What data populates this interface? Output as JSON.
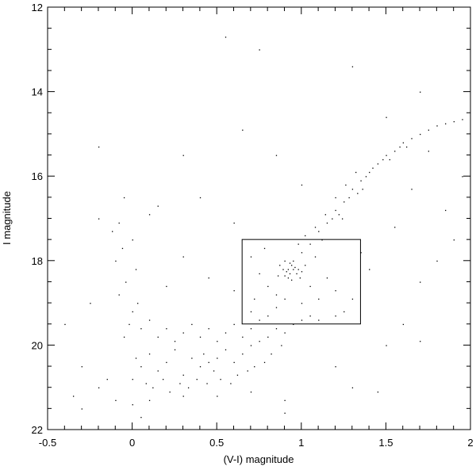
{
  "chart_data": {
    "type": "scatter",
    "title": "",
    "xlabel": "(V-I) magnitude",
    "ylabel": "I magnitude",
    "xlim": [
      -0.5,
      2
    ],
    "ylim": [
      22,
      12
    ],
    "y_inverted": true,
    "grid": false,
    "x_ticks": [
      "-0.5",
      "0",
      "0.5",
      "1",
      "1.5",
      "2"
    ],
    "x_tick_values": [
      -0.5,
      0,
      0.5,
      1,
      1.5,
      2
    ],
    "y_ticks": [
      "12",
      "14",
      "16",
      "18",
      "20",
      "22"
    ],
    "y_tick_values": [
      12,
      14,
      16,
      18,
      20,
      22
    ],
    "marker_color": "#000000",
    "annotation_box": {
      "x": [
        0.65,
        1.35
      ],
      "y": [
        17.5,
        19.5
      ]
    },
    "points_note_sample": true,
    "points": [
      [
        0.02,
        20.3
      ],
      [
        0.05,
        20.5
      ],
      [
        0.1,
        20.2
      ],
      [
        0.15,
        20.6
      ],
      [
        0.2,
        20.4
      ],
      [
        0.25,
        20.1
      ],
      [
        0.3,
        20.7
      ],
      [
        0.35,
        20.3
      ],
      [
        0.4,
        20.5
      ],
      [
        0.42,
        20.2
      ],
      [
        0.45,
        20.4
      ],
      [
        0.48,
        20.6
      ],
      [
        0.5,
        20.3
      ],
      [
        0.55,
        20.1
      ],
      [
        0.6,
        20.4
      ],
      [
        0.65,
        20.2
      ],
      [
        0.7,
        20.0
      ],
      [
        0.75,
        19.9
      ],
      [
        0.8,
        19.8
      ],
      [
        0.85,
        19.6
      ],
      [
        0.0,
        20.8
      ],
      [
        0.08,
        20.9
      ],
      [
        0.12,
        21.0
      ],
      [
        0.18,
        20.8
      ],
      [
        0.22,
        21.1
      ],
      [
        0.28,
        20.9
      ],
      [
        0.33,
        21.0
      ],
      [
        0.38,
        20.8
      ],
      [
        0.44,
        20.9
      ],
      [
        0.52,
        20.8
      ],
      [
        0.58,
        20.9
      ],
      [
        0.62,
        20.7
      ],
      [
        0.68,
        20.6
      ],
      [
        0.72,
        20.5
      ],
      [
        0.78,
        20.4
      ],
      [
        0.82,
        20.2
      ],
      [
        0.88,
        20.0
      ],
      [
        0.9,
        19.7
      ],
      [
        0.95,
        19.5
      ],
      [
        1.0,
        19.4
      ],
      [
        -0.05,
        19.8
      ],
      [
        -0.02,
        19.5
      ],
      [
        0.0,
        19.2
      ],
      [
        0.03,
        19.0
      ],
      [
        -0.08,
        18.8
      ],
      [
        -0.04,
        18.5
      ],
      [
        0.02,
        18.2
      ],
      [
        -0.1,
        18.0
      ],
      [
        -0.06,
        17.7
      ],
      [
        0.0,
        17.5
      ],
      [
        -0.12,
        17.3
      ],
      [
        -0.08,
        17.1
      ],
      [
        0.05,
        19.6
      ],
      [
        0.1,
        19.4
      ],
      [
        0.15,
        19.8
      ],
      [
        0.2,
        19.6
      ],
      [
        0.25,
        19.9
      ],
      [
        0.3,
        19.7
      ],
      [
        0.35,
        19.5
      ],
      [
        0.4,
        19.8
      ],
      [
        0.45,
        19.6
      ],
      [
        0.5,
        19.9
      ],
      [
        0.55,
        19.7
      ],
      [
        0.6,
        19.5
      ],
      [
        0.65,
        19.8
      ],
      [
        0.7,
        19.6
      ],
      [
        0.75,
        19.4
      ],
      [
        0.8,
        19.3
      ],
      [
        0.85,
        19.1
      ],
      [
        0.9,
        18.9
      ],
      [
        0.92,
        18.2
      ],
      [
        0.94,
        18.1
      ],
      [
        0.93,
        18.3
      ],
      [
        0.95,
        18.2
      ],
      [
        0.91,
        18.25
      ],
      [
        0.96,
        18.15
      ],
      [
        0.9,
        18.35
      ],
      [
        0.97,
        18.3
      ],
      [
        0.93,
        18.05
      ],
      [
        0.89,
        18.2
      ],
      [
        0.98,
        18.2
      ],
      [
        0.92,
        18.4
      ],
      [
        0.95,
        18.0
      ],
      [
        1.0,
        18.25
      ],
      [
        0.87,
        18.1
      ],
      [
        0.94,
        18.45
      ],
      [
        1.02,
        18.1
      ],
      [
        0.86,
        18.35
      ],
      [
        0.99,
        18.4
      ],
      [
        0.9,
        18.0
      ],
      [
        0.8,
        18.6
      ],
      [
        0.85,
        18.8
      ],
      [
        1.05,
        18.6
      ],
      [
        1.1,
        18.9
      ],
      [
        1.15,
        18.4
      ],
      [
        1.2,
        18.7
      ],
      [
        0.75,
        18.3
      ],
      [
        0.7,
        17.9
      ],
      [
        0.78,
        17.7
      ],
      [
        1.08,
        17.9
      ],
      [
        1.05,
        17.6
      ],
      [
        1.1,
        17.3
      ],
      [
        1.15,
        17.1
      ],
      [
        1.2,
        16.8
      ],
      [
        1.25,
        16.6
      ],
      [
        1.3,
        16.3
      ],
      [
        1.35,
        16.1
      ],
      [
        1.4,
        15.9
      ],
      [
        1.45,
        15.7
      ],
      [
        1.5,
        15.5
      ],
      [
        1.55,
        15.4
      ],
      [
        1.6,
        15.2
      ],
      [
        1.65,
        15.1
      ],
      [
        1.7,
        15.0
      ],
      [
        1.75,
        14.9
      ],
      [
        1.8,
        14.8
      ],
      [
        1.85,
        14.75
      ],
      [
        1.9,
        14.7
      ],
      [
        1.95,
        14.65
      ],
      [
        1.12,
        17.5
      ],
      [
        1.18,
        17.0
      ],
      [
        1.22,
        16.9
      ],
      [
        1.28,
        16.5
      ],
      [
        1.33,
        16.4
      ],
      [
        1.38,
        16.0
      ],
      [
        1.42,
        15.8
      ],
      [
        1.48,
        15.6
      ],
      [
        1.52,
        15.6
      ],
      [
        1.58,
        15.3
      ],
      [
        1.62,
        15.3
      ],
      [
        1.0,
        17.8
      ],
      [
        1.02,
        17.4
      ],
      [
        0.98,
        17.6
      ],
      [
        1.08,
        17.2
      ],
      [
        1.14,
        16.9
      ],
      [
        1.2,
        16.5
      ],
      [
        1.26,
        16.2
      ],
      [
        1.32,
        15.9
      ],
      [
        1.36,
        16.3
      ],
      [
        1.24,
        17.0
      ],
      [
        -0.2,
        17.0
      ],
      [
        -0.25,
        19.0
      ],
      [
        -0.3,
        20.5
      ],
      [
        -0.35,
        21.2
      ],
      [
        -0.15,
        20.8
      ],
      [
        -0.1,
        21.3
      ],
      [
        -0.2,
        21.0
      ],
      [
        0.0,
        21.4
      ],
      [
        0.1,
        21.3
      ],
      [
        0.3,
        21.2
      ],
      [
        0.5,
        21.2
      ],
      [
        0.7,
        21.1
      ],
      [
        0.9,
        21.3
      ],
      [
        1.2,
        20.5
      ],
      [
        1.3,
        21.0
      ],
      [
        1.5,
        20.0
      ],
      [
        1.6,
        19.5
      ],
      [
        1.7,
        18.5
      ],
      [
        1.8,
        18.0
      ],
      [
        1.9,
        17.5
      ],
      [
        1.25,
        19.2
      ],
      [
        1.3,
        18.9
      ],
      [
        1.2,
        19.3
      ],
      [
        1.1,
        19.4
      ],
      [
        0.7,
        19.2
      ],
      [
        0.72,
        18.9
      ],
      [
        1.0,
        19.0
      ],
      [
        1.05,
        19.3
      ],
      [
        1.35,
        17.8
      ],
      [
        1.4,
        18.2
      ],
      [
        0.55,
        12.7
      ],
      [
        0.75,
        13.0
      ],
      [
        1.3,
        13.4
      ],
      [
        0.65,
        14.9
      ],
      [
        0.3,
        15.5
      ],
      [
        -0.2,
        15.3
      ],
      [
        1.7,
        14.0
      ],
      [
        1.5,
        14.6
      ],
      [
        0.85,
        15.5
      ],
      [
        1.0,
        16.2
      ],
      [
        -0.05,
        16.5
      ],
      [
        0.15,
        16.7
      ],
      [
        0.4,
        16.5
      ],
      [
        0.6,
        17.1
      ],
      [
        0.3,
        17.9
      ],
      [
        0.45,
        18.4
      ],
      [
        0.2,
        18.6
      ],
      [
        0.6,
        18.7
      ],
      [
        0.1,
        16.9
      ],
      [
        1.55,
        17.2
      ],
      [
        -0.4,
        19.5
      ],
      [
        -0.3,
        21.5
      ],
      [
        0.05,
        21.7
      ],
      [
        0.9,
        21.6
      ],
      [
        1.45,
        21.1
      ],
      [
        1.7,
        19.9
      ],
      [
        1.85,
        16.8
      ],
      [
        1.95,
        16.0
      ],
      [
        1.75,
        15.4
      ],
      [
        1.65,
        16.3
      ]
    ]
  }
}
